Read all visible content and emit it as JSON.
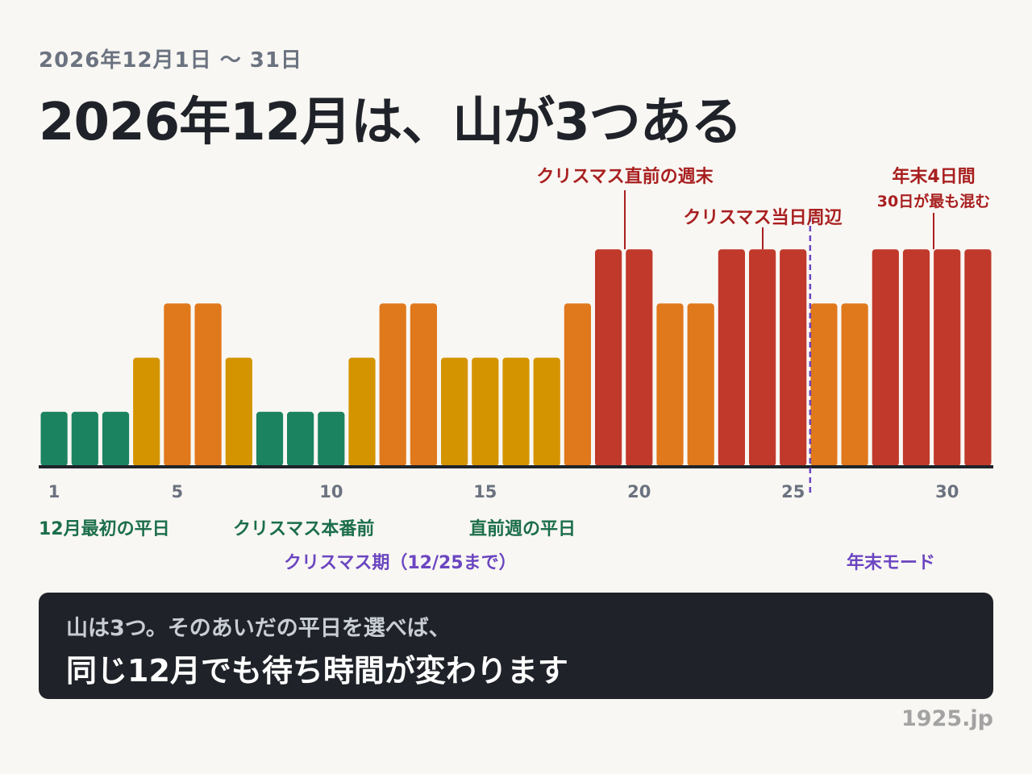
{
  "header": {
    "subtitle": "2026年12月1日 〜 31日",
    "title": "2026年12月は、山が3つある"
  },
  "chart_data": {
    "type": "bar",
    "x": [
      1,
      2,
      3,
      4,
      5,
      6,
      7,
      8,
      9,
      10,
      11,
      12,
      13,
      14,
      15,
      16,
      17,
      18,
      19,
      20,
      21,
      22,
      23,
      24,
      25,
      26,
      27,
      28,
      29,
      30,
      31
    ],
    "values": [
      1,
      1,
      1,
      2,
      3,
      3,
      2,
      1,
      1,
      1,
      2,
      3,
      3,
      2,
      2,
      2,
      2,
      3,
      4,
      4,
      3,
      3,
      4,
      4,
      4,
      3,
      3,
      4,
      4,
      4,
      4
    ],
    "ylim": [
      0,
      4.2
    ],
    "x_ticks": [
      1,
      5,
      10,
      15,
      20,
      25,
      30
    ],
    "colors": {
      "1": "#1b8360",
      "2": "#d49400",
      "3": "#e0781c",
      "4": "#c0392b"
    },
    "axis_color": "#1f2329",
    "tick_color": "#6b7280",
    "divider": {
      "after_day": 25,
      "color": "#6b46c1"
    },
    "peak_annotations": [
      {
        "lines": [
          "クリスマス直前の週末"
        ],
        "day": 19.5
      },
      {
        "lines": [
          "クリスマス当日周辺"
        ],
        "day": 24
      },
      {
        "lines": [
          "年末4日間",
          "30日が最も混む"
        ],
        "day": 29.5
      }
    ],
    "peak_color": "#a82020",
    "valley_annotations": [
      {
        "text": "12月最初の平日"
      },
      {
        "text": "クリスマス本番前"
      },
      {
        "text": "直前週の平日"
      }
    ],
    "valley_color": "#1b6e4a",
    "period_labels": [
      {
        "text": "クリスマス期（12/25まで）"
      },
      {
        "text": "年末モード"
      }
    ],
    "period_color": "#6b46c1"
  },
  "callout": {
    "line1": "山は3つ。そのあいだの平日を選べば、",
    "line2": "同じ12月でも待ち時間が変わります"
  },
  "footer": {
    "credit": "1925.jp"
  }
}
